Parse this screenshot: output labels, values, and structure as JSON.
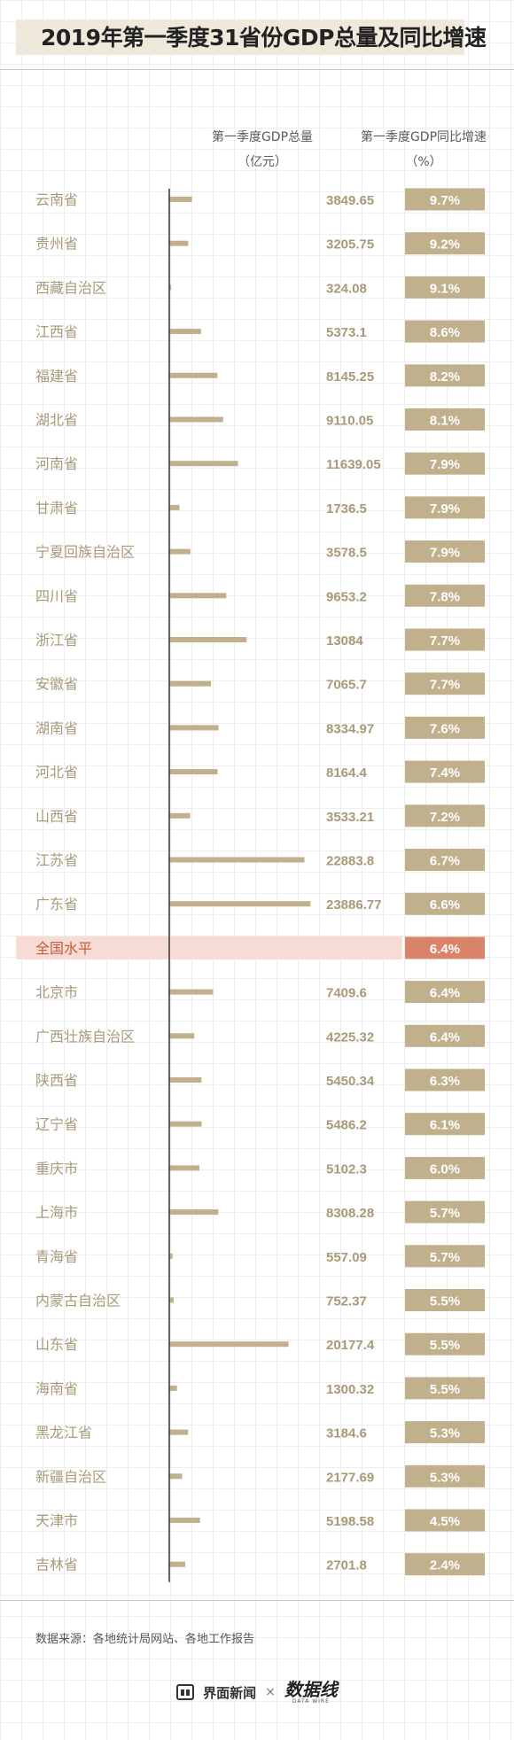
{
  "header": {
    "title": "2019年第一季度31省份GDP总量及同比增速",
    "col_gdp": "第一季度GDP总量",
    "col_gdp_unit": "（亿元）",
    "col_growth": "第一季度GDP同比增速",
    "col_growth_unit": "（%）"
  },
  "footer": {
    "source": "数据来源：各地统计局网站、各地工作报告",
    "brand_left": "界面新闻",
    "separator": "×",
    "brand_right": "数据线",
    "brand_right_sub": "DATA WIRE"
  },
  "colors": {
    "bar": "#c0b08c",
    "label": "#a89a78",
    "highlight_bg": "#f7dcd6",
    "highlight_box": "#d98468",
    "highlight_text": "#c55a3e"
  },
  "chart_data": {
    "type": "bar",
    "series": [
      {
        "name": "第一季度GDP总量",
        "unit": "亿元"
      },
      {
        "name": "第一季度GDP同比增速",
        "unit": "%"
      }
    ],
    "rows": [
      {
        "region": "云南省",
        "gdp": "3849.65",
        "growth": "9.7%"
      },
      {
        "region": "贵州省",
        "gdp": "3205.75",
        "growth": "9.2%"
      },
      {
        "region": "西藏自治区",
        "gdp": "324.08",
        "growth": "9.1%"
      },
      {
        "region": "江西省",
        "gdp": "5373.1",
        "growth": "8.6%"
      },
      {
        "region": "福建省",
        "gdp": "8145.25",
        "growth": "8.2%"
      },
      {
        "region": "湖北省",
        "gdp": "9110.05",
        "growth": "8.1%"
      },
      {
        "region": "河南省",
        "gdp": "11639.05",
        "growth": "7.9%"
      },
      {
        "region": "甘肃省",
        "gdp": "1736.5",
        "growth": "7.9%"
      },
      {
        "region": "宁夏回族自治区",
        "gdp": "3578.5",
        "growth": "7.9%"
      },
      {
        "region": "四川省",
        "gdp": "9653.2",
        "growth": "7.8%"
      },
      {
        "region": "浙江省",
        "gdp": "13084",
        "growth": "7.7%"
      },
      {
        "region": "安徽省",
        "gdp": "7065.7",
        "growth": "7.7%"
      },
      {
        "region": "湖南省",
        "gdp": "8334.97",
        "growth": "7.6%"
      },
      {
        "region": "河北省",
        "gdp": "8164.4",
        "growth": "7.4%"
      },
      {
        "region": "山西省",
        "gdp": "3533.21",
        "growth": "7.2%"
      },
      {
        "region": "江苏省",
        "gdp": "22883.8",
        "growth": "6.7%"
      },
      {
        "region": "广东省",
        "gdp": "23886.77",
        "growth": "6.6%"
      },
      {
        "region": "全国水平",
        "gdp": "",
        "growth": "6.4%",
        "highlight": true
      },
      {
        "region": "北京市",
        "gdp": "7409.6",
        "growth": "6.4%"
      },
      {
        "region": "广西壮族自治区",
        "gdp": "4225.32",
        "growth": "6.4%"
      },
      {
        "region": "陕西省",
        "gdp": "5450.34",
        "growth": "6.3%"
      },
      {
        "region": "辽宁省",
        "gdp": "5486.2",
        "growth": "6.1%"
      },
      {
        "region": "重庆市",
        "gdp": "5102.3",
        "growth": "6.0%"
      },
      {
        "region": "上海市",
        "gdp": "8308.28",
        "growth": "5.7%"
      },
      {
        "region": "青海省",
        "gdp": "557.09",
        "growth": "5.7%"
      },
      {
        "region": "内蒙古自治区",
        "gdp": "752.37",
        "growth": "5.5%"
      },
      {
        "region": "山东省",
        "gdp": "20177.4",
        "growth": "5.5%"
      },
      {
        "region": "海南省",
        "gdp": "1300.32",
        "growth": "5.5%"
      },
      {
        "region": "黑龙江省",
        "gdp": "3184.6",
        "growth": "5.3%"
      },
      {
        "region": "新疆自治区",
        "gdp": "2177.69",
        "growth": "5.3%"
      },
      {
        "region": "天津市",
        "gdp": "5198.58",
        "growth": "4.5%"
      },
      {
        "region": "吉林省",
        "gdp": "2701.8",
        "growth": "2.4%"
      }
    ]
  }
}
